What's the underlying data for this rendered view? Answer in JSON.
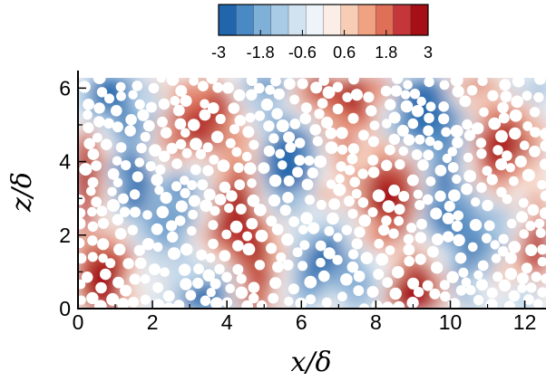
{
  "chart_data": {
    "type": "heatmap",
    "title": "",
    "xlabel": "x/δ",
    "ylabel": "z/δ",
    "xlim": [
      0,
      12.57
    ],
    "ylim": [
      0,
      6.28
    ],
    "x_ticks": [
      "0",
      "2",
      "4",
      "6",
      "8",
      "10",
      "12"
    ],
    "y_ticks": [
      "0",
      "2",
      "4",
      "6"
    ],
    "colorbar": {
      "range": [
        -3,
        3
      ],
      "tick_labels": [
        "-3",
        "-1.8",
        "-0.6",
        "0.6",
        "1.8",
        "3"
      ],
      "levels": 12,
      "colors": [
        "#2166ac",
        "#4a8ac4",
        "#7fb0d8",
        "#a9cbe5",
        "#d1e3f0",
        "#eef4f9",
        "#fbeee6",
        "#f7cdb5",
        "#f0a282",
        "#df6f56",
        "#c4363a",
        "#a50f15"
      ],
      "position": "top-center"
    },
    "overlay": "white circular particles scattered over the field",
    "colormap": "diverging blue-white-red"
  }
}
